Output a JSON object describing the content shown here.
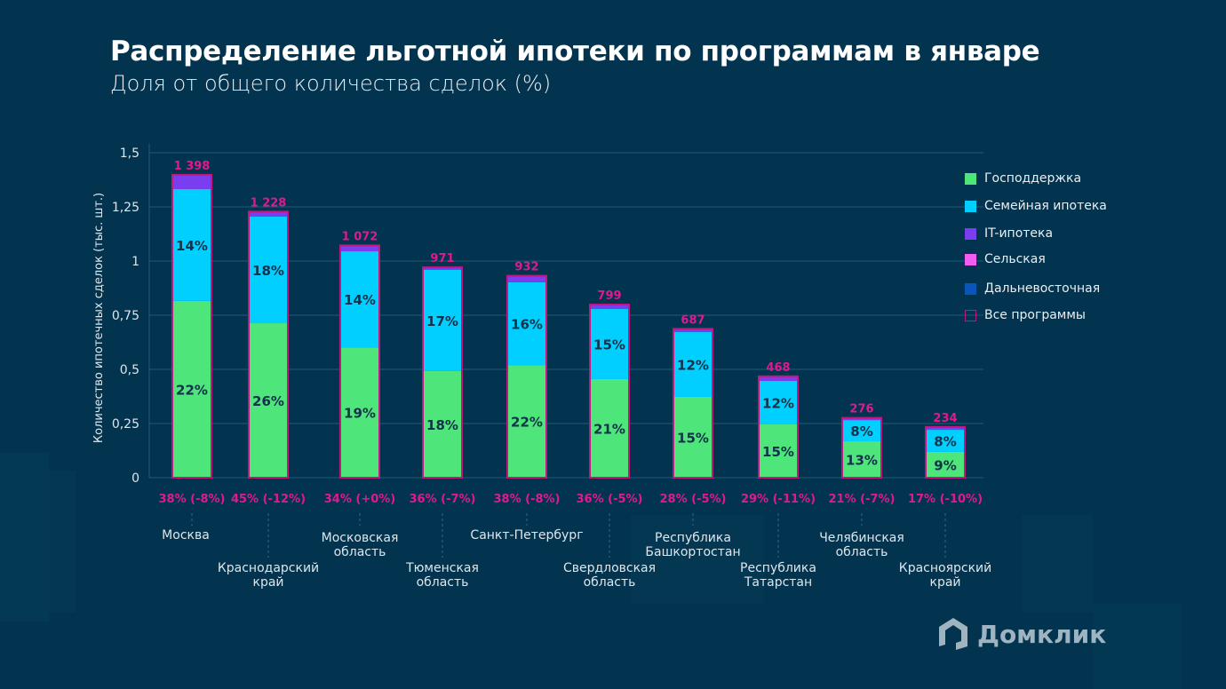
{
  "header": {
    "title": "Распределение льготной ипотеки по программам в январе",
    "subtitle": "Доля от общего количества сделок (%)"
  },
  "legend": {
    "items": [
      {
        "label": "Господдержка",
        "color": "#4ee57a",
        "icon": "square-filled"
      },
      {
        "label": "Семейная ипотека",
        "color": "#00cfff",
        "icon": "square-filled"
      },
      {
        "label": "IT-ипотека",
        "color": "#7b3df0",
        "icon": "square-filled"
      },
      {
        "label": "Сельская",
        "color": "#f45cf0",
        "icon": "square-filled"
      },
      {
        "label": "Дальневосточная",
        "color": "#0a55b8",
        "icon": "square-filled"
      },
      {
        "label": "Все программы",
        "color": "#c0187f",
        "icon": "square-outline"
      }
    ]
  },
  "logo": {
    "text": "Домклик",
    "icon": "house-logo-icon"
  },
  "chart_data": {
    "type": "bar",
    "stacked": true,
    "title": "Распределение льготной ипотеки по программам в январе",
    "subtitle": "Доля от общего количества сделок (%)",
    "xlabel": "",
    "ylabel": "Количество ипотечных сделок (тыс. шт.)",
    "ylim": [
      0,
      1.5
    ],
    "yticks": [
      0,
      0.25,
      0.5,
      0.75,
      1,
      1.25,
      1.5
    ],
    "ytick_labels": [
      "0",
      "0,25",
      "0,5",
      "0,75",
      "1",
      "1,25",
      "1,5"
    ],
    "grid": true,
    "legend_position": "right",
    "categories": [
      "Москва",
      "Краснодарский край",
      "Московская область",
      "Тюменская область",
      "Санкт-Петербург",
      "Свердловская область",
      "Республика Башкортостан",
      "Республика Татарстан",
      "Челябинская область",
      "Красноярский край"
    ],
    "category_lines": [
      [
        "Москва"
      ],
      [
        "Краснодарский",
        "край"
      ],
      [
        "Московская",
        "область"
      ],
      [
        "Тюменская",
        "область"
      ],
      [
        "Санкт-Петербург"
      ],
      [
        "Свердловская",
        "область"
      ],
      [
        "Республика",
        "Башкортостан"
      ],
      [
        "Республика",
        "Татарстан"
      ],
      [
        "Челябинская",
        "область"
      ],
      [
        "Красноярский",
        "край"
      ]
    ],
    "series": [
      {
        "name": "Господдержка",
        "color": "#4ee57a",
        "values": [
          0.816,
          0.713,
          0.602,
          0.492,
          0.52,
          0.455,
          0.373,
          0.246,
          0.168,
          0.119
        ],
        "labels": [
          "22%",
          "26%",
          "19%",
          "18%",
          "22%",
          "21%",
          "15%",
          "15%",
          "13%",
          "9%"
        ]
      },
      {
        "name": "Семейная ипотека",
        "color": "#00cfff",
        "values": [
          0.516,
          0.492,
          0.443,
          0.467,
          0.382,
          0.324,
          0.299,
          0.201,
          0.098,
          0.102
        ],
        "labels": [
          "14%",
          "18%",
          "14%",
          "17%",
          "16%",
          "15%",
          "12%",
          "12%",
          "8%",
          "8%"
        ]
      },
      {
        "name": "IT-ипотека",
        "color": "#7b3df0",
        "values": [
          0.066,
          0.023,
          0.027,
          0.012,
          0.03,
          0.02,
          0.015,
          0.021,
          0.01,
          0.013
        ],
        "labels": [
          "",
          "",
          "",
          "",
          "",
          "",
          "",
          "",
          "",
          ""
        ]
      },
      {
        "name": "Сельская",
        "color": "#f45cf0",
        "values": [
          0,
          0,
          0,
          0,
          0,
          0,
          0,
          0,
          0,
          0
        ],
        "labels": [
          "",
          "",
          "",
          "",
          "",
          "",
          "",
          "",
          "",
          ""
        ]
      },
      {
        "name": "Дальневосточная",
        "color": "#0a55b8",
        "values": [
          0,
          0,
          0,
          0,
          0,
          0,
          0,
          0,
          0,
          0
        ],
        "labels": [
          "",
          "",
          "",
          "",
          "",
          "",
          "",
          "",
          "",
          ""
        ]
      }
    ],
    "totals": {
      "name": "Все программы",
      "values": [
        1.398,
        1.228,
        1.072,
        0.971,
        0.932,
        0.799,
        0.687,
        0.468,
        0.276,
        0.234
      ],
      "labels": [
        "1 398",
        "1 228",
        "1 072",
        "971",
        "932",
        "799",
        "687",
        "468",
        "276",
        "234"
      ],
      "outline_color": "#c0187f",
      "label_color": "#e0198f"
    },
    "share_labels": [
      "38% (-8%)",
      "45% (-12%)",
      "34% (+0%)",
      "36% (-7%)",
      "38% (-8%)",
      "36% (-5%)",
      "28% (-5%)",
      "29% (-11%)",
      "21% (-7%)",
      "17% (-10%)"
    ]
  }
}
